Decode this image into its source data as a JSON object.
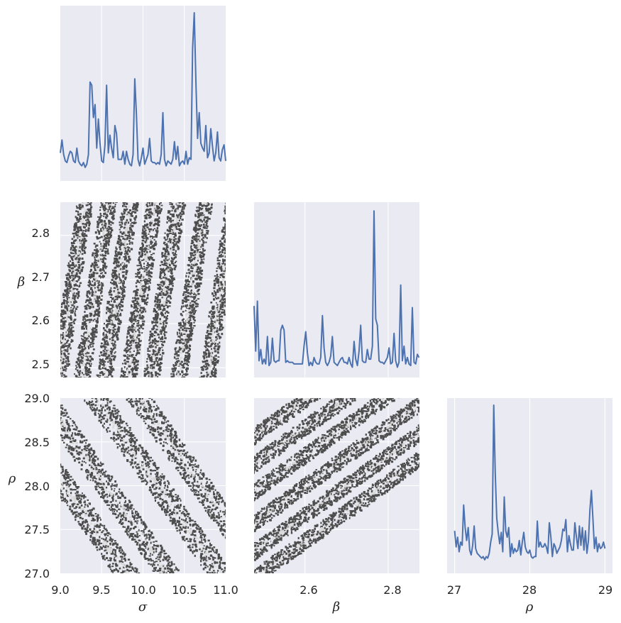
{
  "chart_data": [
    {
      "id": "sigma_sigma",
      "type": "line",
      "variable": "σ",
      "x_range": [
        9.0,
        11.0
      ],
      "series": [
        {
          "color": "#4C72B0",
          "x": [
            9.0,
            9.02,
            9.04,
            9.06,
            9.08,
            9.1,
            9.12,
            9.14,
            9.16,
            9.18,
            9.2,
            9.22,
            9.24,
            9.26,
            9.28,
            9.3,
            9.32,
            9.34,
            9.36,
            9.38,
            9.4,
            9.42,
            9.44,
            9.46,
            9.48,
            9.5,
            9.52,
            9.54,
            9.56,
            9.58,
            9.6,
            9.62,
            9.64,
            9.66,
            9.68,
            9.7,
            9.72,
            9.74,
            9.76,
            9.78,
            9.8,
            9.82,
            9.84,
            9.86,
            9.88,
            9.9,
            9.92,
            9.94,
            9.96,
            9.98,
            10.0,
            10.02,
            10.04,
            10.06,
            10.08,
            10.1,
            10.12,
            10.14,
            10.16,
            10.18,
            10.2,
            10.22,
            10.24,
            10.26,
            10.28,
            10.3,
            10.32,
            10.34,
            10.36,
            10.38,
            10.4,
            10.42,
            10.44,
            10.46,
            10.48,
            10.5,
            10.52,
            10.54,
            10.56,
            10.58,
            10.6,
            10.62,
            10.64,
            10.66,
            10.68,
            10.7,
            10.72,
            10.74,
            10.76,
            10.78,
            10.8,
            10.82,
            10.84,
            10.86,
            10.88,
            10.9,
            10.92,
            10.94,
            10.96,
            10.98,
            11.0
          ],
          "y": [
            0.13,
            0.21,
            0.12,
            0.08,
            0.07,
            0.11,
            0.14,
            0.13,
            0.08,
            0.07,
            0.16,
            0.08,
            0.06,
            0.05,
            0.07,
            0.04,
            0.06,
            0.12,
            0.57,
            0.55,
            0.35,
            0.43,
            0.16,
            0.34,
            0.19,
            0.08,
            0.07,
            0.18,
            0.55,
            0.13,
            0.24,
            0.16,
            0.1,
            0.3,
            0.25,
            0.09,
            0.09,
            0.09,
            0.14,
            0.06,
            0.14,
            0.09,
            0.06,
            0.05,
            0.12,
            0.59,
            0.37,
            0.09,
            0.05,
            0.1,
            0.16,
            0.06,
            0.09,
            0.12,
            0.22,
            0.08,
            0.07,
            0.07,
            0.06,
            0.07,
            0.06,
            0.12,
            0.38,
            0.09,
            0.05,
            0.08,
            0.07,
            0.06,
            0.09,
            0.2,
            0.09,
            0.17,
            0.05,
            0.07,
            0.08,
            0.06,
            0.14,
            0.06,
            0.1,
            0.09,
            0.78,
            1.0,
            0.56,
            0.22,
            0.38,
            0.19,
            0.16,
            0.14,
            0.3,
            0.1,
            0.13,
            0.28,
            0.17,
            0.08,
            0.13,
            0.26,
            0.1,
            0.08,
            0.15,
            0.18,
            0.08
          ]
        }
      ]
    },
    {
      "id": "beta_beta",
      "type": "line",
      "variable": "β",
      "x_range": [
        2.478,
        2.875
      ],
      "series": [
        {
          "color": "#4C72B0",
          "x": [
            2.478,
            2.482,
            2.486,
            2.49,
            2.494,
            2.498,
            2.502,
            2.506,
            2.51,
            2.514,
            2.518,
            2.522,
            2.526,
            2.53,
            2.534,
            2.538,
            2.542,
            2.546,
            2.55,
            2.554,
            2.558,
            2.562,
            2.566,
            2.57,
            2.574,
            2.578,
            2.582,
            2.586,
            2.59,
            2.594,
            2.598,
            2.602,
            2.606,
            2.61,
            2.614,
            2.618,
            2.622,
            2.626,
            2.63,
            2.634,
            2.638,
            2.642,
            2.646,
            2.65,
            2.654,
            2.658,
            2.662,
            2.666,
            2.67,
            2.674,
            2.678,
            2.682,
            2.686,
            2.69,
            2.694,
            2.698,
            2.702,
            2.706,
            2.71,
            2.714,
            2.718,
            2.722,
            2.726,
            2.73,
            2.734,
            2.738,
            2.742,
            2.746,
            2.75,
            2.754,
            2.758,
            2.762,
            2.766,
            2.77,
            2.774,
            2.778,
            2.782,
            2.786,
            2.79,
            2.794,
            2.798,
            2.802,
            2.806,
            2.81,
            2.814,
            2.818,
            2.822,
            2.826,
            2.83,
            2.834,
            2.838,
            2.842,
            2.846,
            2.85,
            2.854,
            2.858,
            2.862,
            2.866,
            2.87,
            2.874
          ],
          "y": [
            0.4,
            0.12,
            0.43,
            0.06,
            0.13,
            0.04,
            0.07,
            0.04,
            0.21,
            0.03,
            0.05,
            0.2,
            0.06,
            0.05,
            0.06,
            0.06,
            0.25,
            0.28,
            0.25,
            0.05,
            0.06,
            0.05,
            0.05,
            0.05,
            0.04,
            0.04,
            0.04,
            0.04,
            0.04,
            0.04,
            0.15,
            0.24,
            0.11,
            0.03,
            0.05,
            0.03,
            0.08,
            0.05,
            0.04,
            0.04,
            0.08,
            0.34,
            0.14,
            0.05,
            0.03,
            0.05,
            0.09,
            0.21,
            0.05,
            0.04,
            0.03,
            0.05,
            0.07,
            0.08,
            0.05,
            0.05,
            0.04,
            0.08,
            0.04,
            0.02,
            0.18,
            0.07,
            0.03,
            0.12,
            0.28,
            0.06,
            0.05,
            0.05,
            0.13,
            0.07,
            0.07,
            0.15,
            0.99,
            0.32,
            0.28,
            0.06,
            0.05,
            0.05,
            0.04,
            0.06,
            0.08,
            0.14,
            0.04,
            0.05,
            0.23,
            0.06,
            0.02,
            0.05,
            0.53,
            0.06,
            0.15,
            0.04,
            0.08,
            0.04,
            0.03,
            0.39,
            0.05,
            0.04,
            0.1,
            0.08
          ]
        }
      ]
    },
    {
      "id": "rho_rho",
      "type": "line",
      "variable": "ρ",
      "x_range": [
        26.9,
        29.1
      ],
      "series": [
        {
          "color": "#4C72B0",
          "x": [
            27.0,
            27.02,
            27.04,
            27.06,
            27.08,
            27.1,
            27.12,
            27.14,
            27.16,
            27.18,
            27.2,
            27.22,
            27.24,
            27.26,
            27.28,
            27.3,
            27.32,
            27.34,
            27.36,
            27.38,
            27.4,
            27.42,
            27.44,
            27.46,
            27.48,
            27.5,
            27.52,
            27.54,
            27.56,
            27.58,
            27.6,
            27.62,
            27.64,
            27.66,
            27.68,
            27.7,
            27.72,
            27.74,
            27.76,
            27.78,
            27.8,
            27.82,
            27.84,
            27.86,
            27.88,
            27.9,
            27.92,
            27.94,
            27.96,
            27.98,
            28.0,
            28.02,
            28.04,
            28.06,
            28.08,
            28.1,
            28.12,
            28.14,
            28.16,
            28.18,
            28.2,
            28.22,
            28.24,
            28.26,
            28.28,
            28.3,
            28.32,
            28.34,
            28.36,
            28.38,
            28.4,
            28.42,
            28.44,
            28.46,
            28.48,
            28.5,
            28.52,
            28.54,
            28.56,
            28.58,
            28.6,
            28.62,
            28.64,
            28.66,
            28.68,
            28.7,
            28.72,
            28.74,
            28.76,
            28.78,
            28.8,
            28.82,
            28.84,
            28.86,
            28.88,
            28.9,
            28.92,
            28.94,
            28.96,
            28.98,
            29.0
          ],
          "y": [
            0.22,
            0.12,
            0.18,
            0.09,
            0.15,
            0.13,
            0.38,
            0.24,
            0.16,
            0.24,
            0.1,
            0.07,
            0.13,
            0.25,
            0.11,
            0.08,
            0.07,
            0.06,
            0.05,
            0.06,
            0.04,
            0.06,
            0.05,
            0.08,
            0.15,
            0.2,
            1.0,
            0.58,
            0.3,
            0.21,
            0.14,
            0.21,
            0.09,
            0.43,
            0.22,
            0.18,
            0.24,
            0.06,
            0.14,
            0.08,
            0.11,
            0.09,
            0.1,
            0.16,
            0.07,
            0.15,
            0.21,
            0.12,
            0.09,
            0.08,
            0.1,
            0.06,
            0.05,
            0.06,
            0.06,
            0.28,
            0.12,
            0.15,
            0.12,
            0.12,
            0.14,
            0.12,
            0.08,
            0.27,
            0.18,
            0.06,
            0.14,
            0.12,
            0.08,
            0.1,
            0.12,
            0.16,
            0.23,
            0.22,
            0.29,
            0.09,
            0.19,
            0.14,
            0.1,
            0.1,
            0.27,
            0.18,
            0.11,
            0.25,
            0.13,
            0.24,
            0.1,
            0.22,
            0.08,
            0.16,
            0.35,
            0.47,
            0.29,
            0.11,
            0.18,
            0.09,
            0.14,
            0.11,
            0.12,
            0.15,
            0.11
          ]
        }
      ]
    },
    {
      "id": "beta_vs_sigma",
      "type": "contour",
      "x_variable": "σ",
      "y_variable": "β",
      "x_range": [
        9.0,
        11.0
      ],
      "y_range": [
        2.478,
        2.875
      ],
      "band_centers_sigma_at_beta_2_5": [
        9.0,
        9.28,
        9.55,
        9.84,
        10.12,
        10.45,
        10.8
      ],
      "band_slope_dsigma_per_dbeta": 1.6,
      "colors": [
        "#4d4d4d",
        "#d9d9d9"
      ]
    },
    {
      "id": "rho_vs_sigma",
      "type": "contour",
      "x_variable": "σ",
      "y_variable": "ρ",
      "x_range": [
        9.0,
        11.0
      ],
      "y_range": [
        27.0,
        29.0
      ],
      "band_centers_sigma_at_rho_28": [
        9.05,
        9.55,
        10.18,
        10.7
      ],
      "band_slope_dsigma_per_drho": -0.75,
      "colors": [
        "#4d4d4d",
        "#d9d9d9"
      ]
    },
    {
      "id": "rho_vs_beta",
      "type": "contour",
      "x_variable": "β",
      "y_variable": "ρ",
      "x_range": [
        2.478,
        2.875
      ],
      "y_range": [
        27.0,
        29.0
      ],
      "band_centers_rho_at_beta_2_5": [
        27.02,
        27.32,
        27.65,
        28.0,
        28.32,
        28.64
      ],
      "band_slope_drho_per_dbeta": 3.4,
      "colors": [
        "#4d4d4d",
        "#d9d9d9"
      ]
    }
  ],
  "axes": {
    "sigma": {
      "label": "σ",
      "ticks": [
        "9.0",
        "9.5",
        "10.0",
        "10.5",
        "11.0"
      ],
      "tick_values": [
        9.0,
        9.5,
        10.0,
        10.5,
        11.0
      ]
    },
    "beta_x": {
      "label": "β",
      "ticks": [
        "2.6",
        "2.8"
      ],
      "tick_values": [
        2.6,
        2.8
      ]
    },
    "rho_x": {
      "label": "ρ",
      "ticks": [
        "27",
        "28",
        "29"
      ],
      "tick_values": [
        27,
        28,
        29
      ]
    },
    "beta_y": {
      "label": "β",
      "ticks": [
        "2.8",
        "2.7",
        "2.6",
        "2.5"
      ],
      "tick_values": [
        2.8,
        2.7,
        2.6,
        2.5
      ]
    },
    "rho_y": {
      "label": "ρ",
      "ticks": [
        "29.0",
        "28.5",
        "28.0",
        "27.5",
        "27.0"
      ],
      "tick_values": [
        29.0,
        28.5,
        28.0,
        27.5,
        27.0
      ]
    }
  },
  "style": {
    "panel_bg": "#EAEAF2",
    "grid": "#ffffff",
    "line": "#4C72B0"
  }
}
